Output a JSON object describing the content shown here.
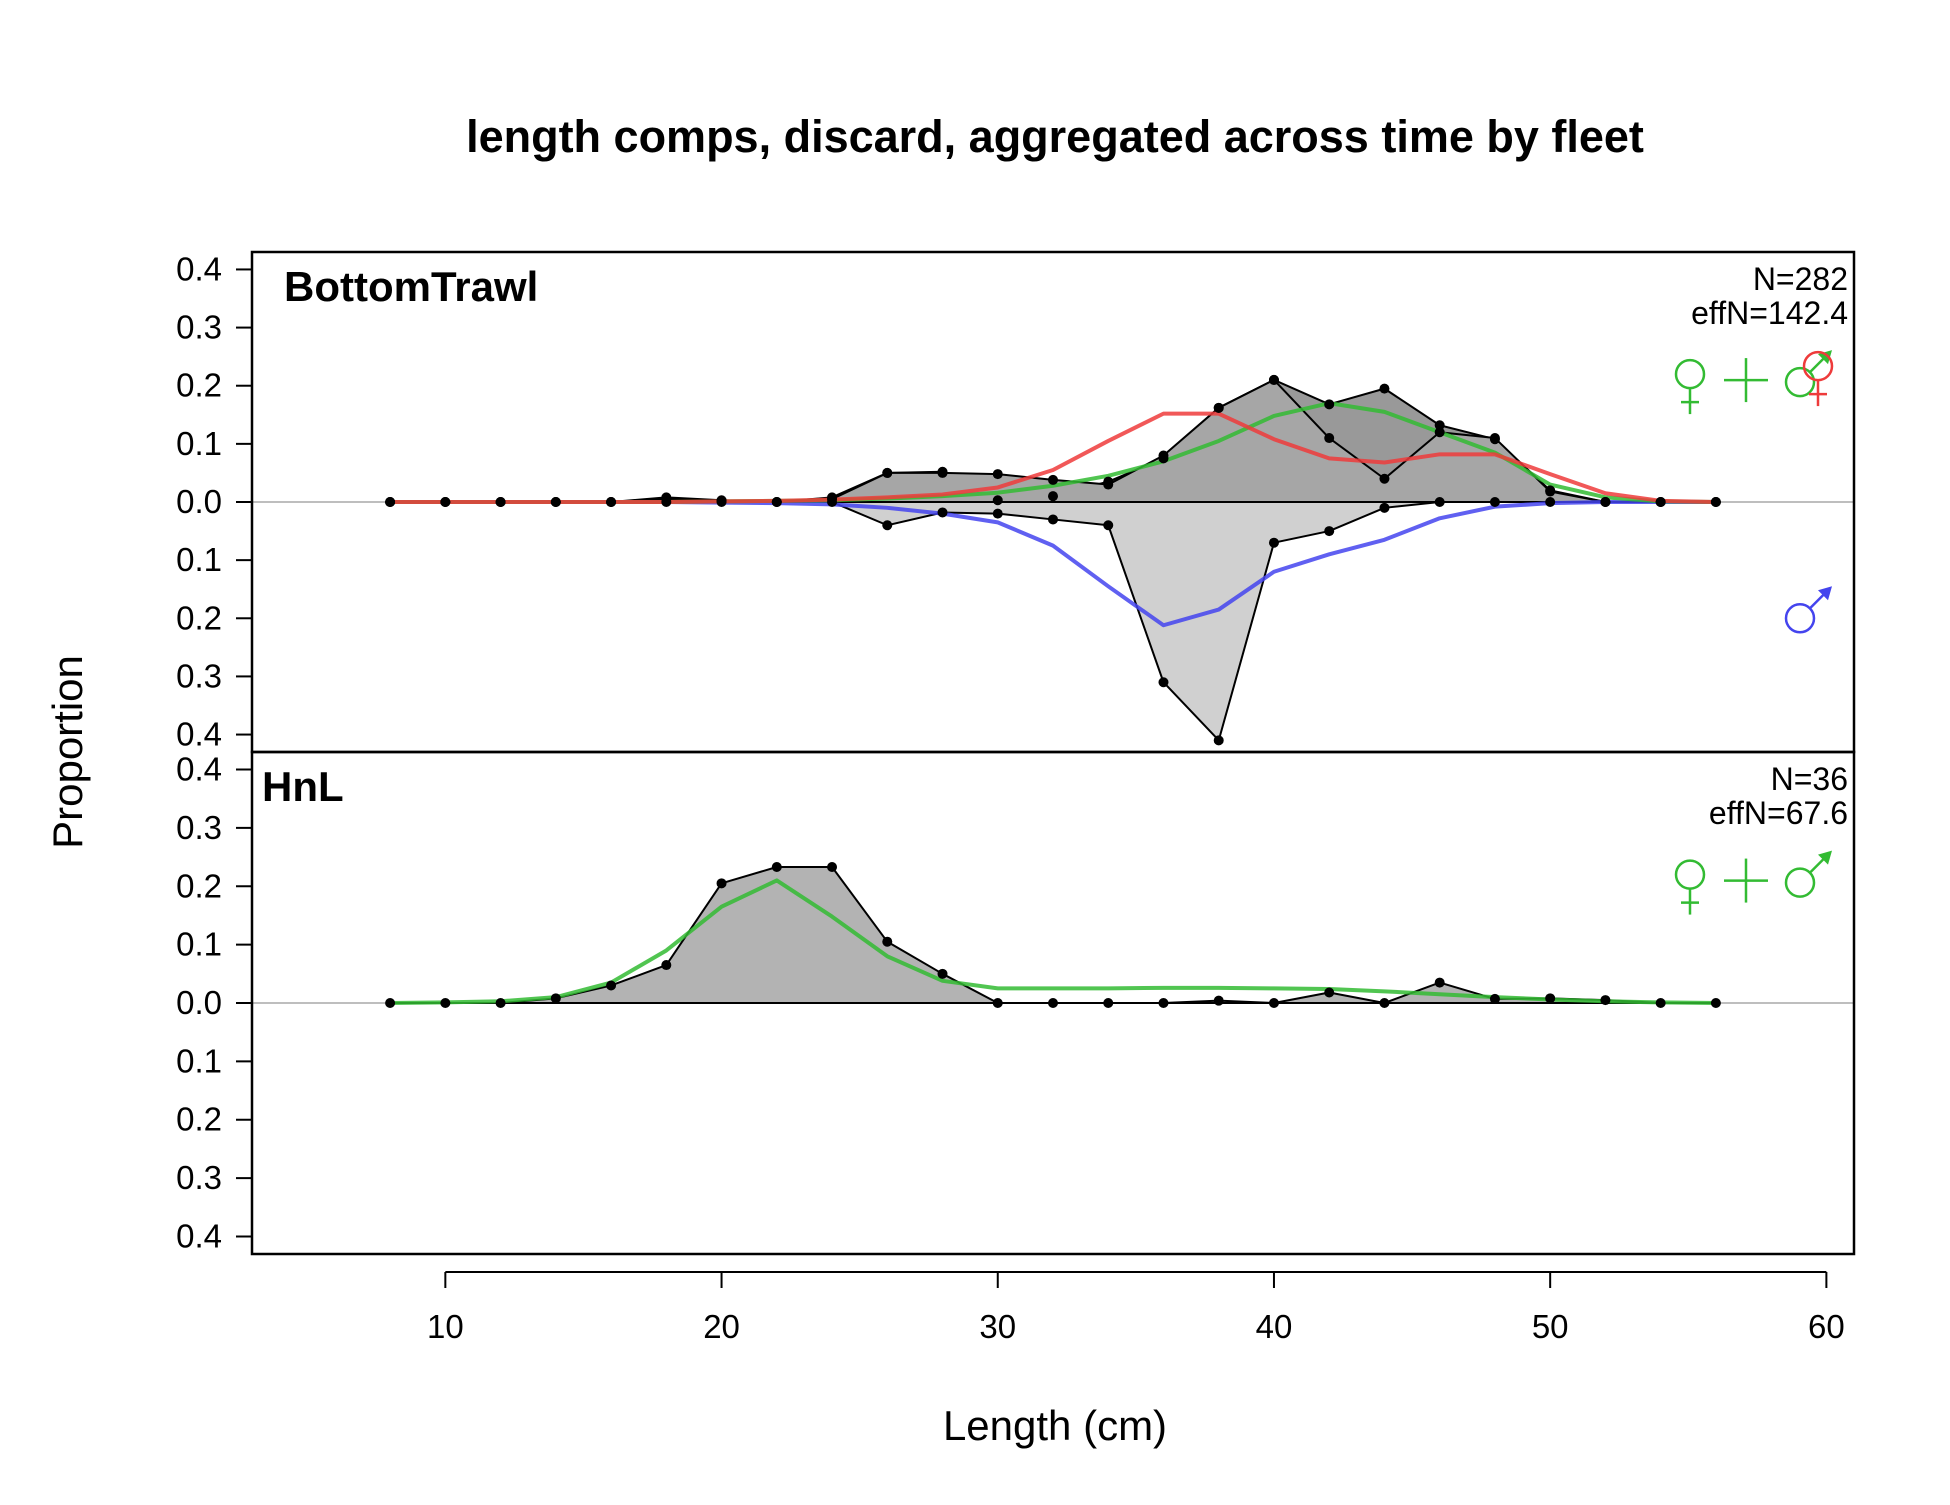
{
  "chart_data": {
    "type": "area",
    "title": "length comps, discard, aggregated across time by fleet",
    "xlabel": "Length (cm)",
    "ylabel": "Proportion",
    "xlim": [
      3,
      61
    ],
    "ylim_per_panel": [
      -0.43,
      0.43
    ],
    "x_ticks": [
      10,
      20,
      30,
      40,
      50,
      60
    ],
    "x_tick_labels": [
      "10",
      "20",
      "30",
      "40",
      "50",
      "60"
    ],
    "y_ticks": [
      0.4,
      0.3,
      0.2,
      0.1,
      0.0,
      -0.1,
      -0.2,
      -0.3,
      -0.4
    ],
    "y_tick_labels": [
      "0.4",
      "0.3",
      "0.2",
      "0.1",
      "0.0",
      "0.1",
      "0.2",
      "0.3",
      "0.4"
    ],
    "grid": false,
    "x": [
      8,
      10,
      12,
      14,
      16,
      18,
      20,
      22,
      24,
      26,
      28,
      30,
      32,
      34,
      36,
      38,
      40,
      42,
      44,
      46,
      48,
      50,
      52,
      54,
      56
    ],
    "colors": {
      "observed_female_fill": "#a6a6a6",
      "observed_male_fill": "#d0d0d0",
      "observed_combined_fill": "#b3b3b3",
      "points": "#000000",
      "zero_line": "#bebebe",
      "female_expected": "#ee3b3b",
      "male_expected": "#4444ee",
      "combined_expected": "#33bb33"
    },
    "panels": [
      {
        "fleet": "BottomTrawl",
        "n_label": "N=282",
        "effn_label": "effN=142.4",
        "series": [
          {
            "sex": "female",
            "values": [
              0,
              0,
              0,
              0,
              0,
              0.005,
              0.002,
              0,
              0.005,
              0.05,
              0.05,
              0.048,
              0.038,
              0.03,
              0.08,
              0.162,
              0.21,
              0.11,
              0.04,
              0.12,
              0.11,
              0.018,
              0,
              0,
              0
            ]
          },
          {
            "sex": "combined",
            "values": [
              0,
              0,
              0,
              0,
              0,
              0.008,
              0.003,
              0,
              0.008,
              0.05,
              0.052,
              0.003,
              0.01,
              0.035,
              0.075,
              0.162,
              0.21,
              0.168,
              0.195,
              0.132,
              0.108,
              0.02,
              0,
              0,
              0
            ]
          },
          {
            "sex": "male",
            "values": [
              0,
              0,
              0,
              0,
              0,
              0,
              0,
              0,
              0,
              -0.04,
              -0.018,
              -0.02,
              -0.03,
              -0.04,
              -0.31,
              -0.41,
              -0.07,
              -0.05,
              -0.01,
              0,
              0,
              0,
              0,
              0,
              0
            ]
          },
          {
            "sex": "female-expected",
            "values": [
              0,
              0,
              0,
              0,
              0,
              0,
              0.001,
              0.002,
              0.004,
              0.008,
              0.013,
              0.025,
              0.055,
              0.105,
              0.152,
              0.152,
              0.108,
              0.075,
              0.068,
              0.082,
              0.082,
              0.048,
              0.015,
              0.002,
              0
            ]
          },
          {
            "sex": "combined-expected",
            "values": [
              0,
              0,
              0,
              0,
              0,
              0,
              0.001,
              0.002,
              0.003,
              0.006,
              0.01,
              0.016,
              0.028,
              0.045,
              0.07,
              0.105,
              0.148,
              0.17,
              0.155,
              0.12,
              0.085,
              0.03,
              0.008,
              0.001,
              0
            ]
          },
          {
            "sex": "male-expected",
            "values": [
              0,
              0,
              0,
              0,
              0,
              0,
              -0.001,
              -0.002,
              -0.004,
              -0.01,
              -0.02,
              -0.035,
              -0.075,
              -0.145,
              -0.212,
              -0.185,
              -0.12,
              -0.09,
              -0.065,
              -0.028,
              -0.008,
              -0.002,
              0,
              0,
              0
            ]
          }
        ]
      },
      {
        "fleet": "HnL",
        "n_label": "N=36",
        "effn_label": "effN=67.6",
        "series": [
          {
            "sex": "combined",
            "values": [
              0,
              0,
              0,
              0.008,
              0.03,
              0.065,
              0.205,
              0.233,
              0.233,
              0.105,
              0.05,
              0,
              0,
              0,
              0,
              0.004,
              0,
              0.018,
              0,
              0.035,
              0.007,
              0.008,
              0.005,
              0,
              0
            ]
          },
          {
            "sex": "combined-expected",
            "values": [
              0,
              0.001,
              0.003,
              0.01,
              0.035,
              0.09,
              0.165,
              0.21,
              0.148,
              0.08,
              0.038,
              0.025,
              0.025,
              0.025,
              0.026,
              0.026,
              0.025,
              0.024,
              0.02,
              0.015,
              0.01,
              0.006,
              0.003,
              0.001,
              0
            ]
          }
        ]
      }
    ]
  }
}
